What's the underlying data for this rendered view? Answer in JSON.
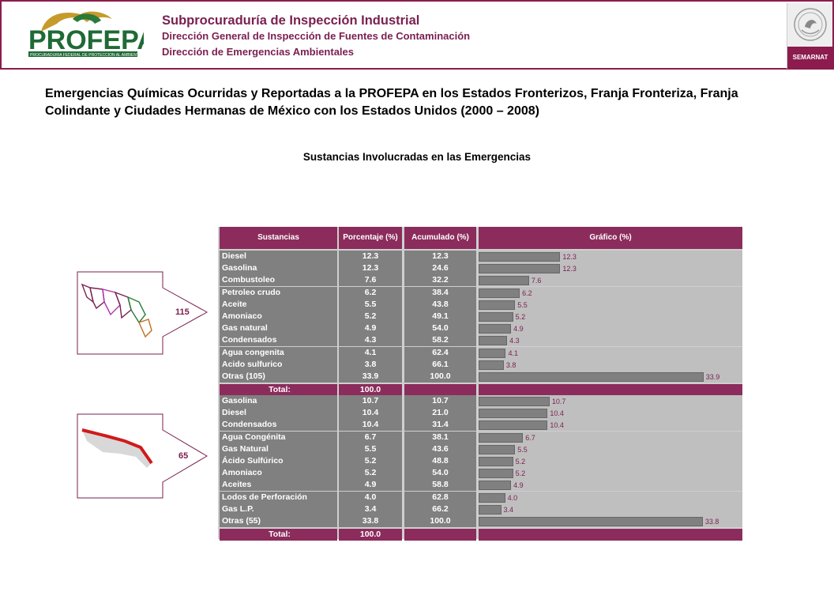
{
  "header": {
    "logo_text": "PROFEPA",
    "logo_subtext": "PROCURADURIA FEDERAL DE PROTECCION AL AMBIENTE",
    "line1": "Subprocuraduría de Inspección Industrial",
    "line2": "Dirección General de Inspección de Fuentes de Contaminación",
    "line3": "Dirección de Emergencias Ambientales",
    "seal_text": "SEMARNAT"
  },
  "title": "Emergencias Químicas Ocurridas y Reportadas a la PROFEPA en los Estados Fronterizos, Franja Fronteriza, Franja Colindante y Ciudades Hermanas de México con los Estados Unidos (2000 – 2008)",
  "subtitle": "Sustancias  Involucradas  en las Emergencias",
  "columns": [
    "Sustancias",
    "Porcentaje (%)",
    "Acumulado (%)",
    "Gráfico (%)"
  ],
  "total_label": "Total:",
  "tables": [
    {
      "count": "115",
      "total": "100.0",
      "rows": [
        {
          "name": "Diesel",
          "pct": "12.3",
          "acc": "12.3"
        },
        {
          "name": "Gasolina",
          "pct": "12.3",
          "acc": "24.6"
        },
        {
          "name": "Combustoleo",
          "pct": "7.6",
          "acc": "32.2"
        },
        {
          "name": "Petroleo crudo",
          "pct": "6.2",
          "acc": "38.4"
        },
        {
          "name": "Aceite",
          "pct": "5.5",
          "acc": "43.8"
        },
        {
          "name": "Amoniaco",
          "pct": "5.2",
          "acc": "49.1"
        },
        {
          "name": "Gas natural",
          "pct": "4.9",
          "acc": "54.0"
        },
        {
          "name": "Condensados",
          "pct": "4.3",
          "acc": "58.2"
        },
        {
          "name": "Agua congenita",
          "pct": "4.1",
          "acc": "62.4"
        },
        {
          "name": "Acido sulfurico",
          "pct": "3.8",
          "acc": "66.1"
        },
        {
          "name": "Otras (105)",
          "pct": "33.9",
          "acc": "100.0"
        }
      ]
    },
    {
      "count": "65",
      "total": "100.0",
      "rows": [
        {
          "name": "Gasolina",
          "pct": "10.7",
          "acc": "10.7"
        },
        {
          "name": "Diesel",
          "pct": "10.4",
          "acc": "21.0"
        },
        {
          "name": "Condensados",
          "pct": "10.4",
          "acc": "31.4"
        },
        {
          "name": "Agua Congénita",
          "pct": "6.7",
          "acc": "38.1"
        },
        {
          "name": "Gas Natural",
          "pct": "5.5",
          "acc": "43.6"
        },
        {
          "name": "Ácido Sulfúrico",
          "pct": "5.2",
          "acc": "48.8"
        },
        {
          "name": "Amoniaco",
          "pct": "5.2",
          "acc": "54.0"
        },
        {
          "name": "Aceites",
          "pct": "4.9",
          "acc": "58.8"
        },
        {
          "name": "Lodos de Perforación",
          "pct": "4.0",
          "acc": "62.8"
        },
        {
          "name": "Gas L.P.",
          "pct": "3.4",
          "acc": "66.2"
        },
        {
          "name": "Otras (55)",
          "pct": "33.8",
          "acc": "100.0"
        }
      ]
    }
  ],
  "colors": {
    "brand": "#8b2c5c",
    "bar": "#808080",
    "panel": "#cfcfcf"
  }
}
